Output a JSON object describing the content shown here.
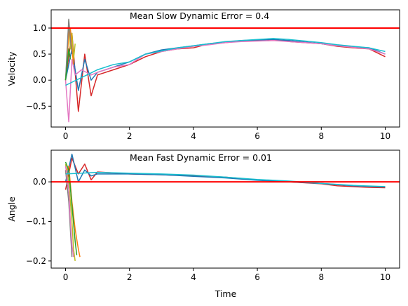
{
  "chart_data": [
    {
      "type": "line",
      "title": "",
      "annotation": "Mean Slow Dynamic Error = 0.4",
      "xlabel": "",
      "ylabel": "Velocity",
      "xlim": [
        -0.45,
        10.45
      ],
      "ylim": [
        -0.9,
        1.35
      ],
      "xticks": [
        0,
        2,
        4,
        6,
        8,
        10
      ],
      "xtick_labels": [
        "0",
        "2",
        "4",
        "6",
        "8",
        "10"
      ],
      "yticks": [
        1.0,
        0.5,
        0.0,
        -0.5
      ],
      "ytick_labels": [
        "1.0",
        "0.5",
        "0.0",
        "−0.5"
      ],
      "reference_line": {
        "y": 1.0,
        "color": "#ff0000"
      },
      "grid": false,
      "series": [
        {
          "color": "#d62728",
          "x": [
            0,
            0.2,
            0.4,
            0.6,
            0.8,
            1,
            1.5,
            2,
            2.5,
            3,
            3.5,
            4,
            4.5,
            5,
            5.5,
            6,
            6.5,
            7,
            7.5,
            8,
            8.5,
            9,
            9.5,
            10
          ],
          "y": [
            0,
            0.9,
            -0.6,
            0.5,
            -0.3,
            0.1,
            0.2,
            0.3,
            0.45,
            0.55,
            0.6,
            0.62,
            0.7,
            0.72,
            0.75,
            0.76,
            0.78,
            0.74,
            0.72,
            0.7,
            0.65,
            0.62,
            0.6,
            0.45
          ]
        },
        {
          "color": "#1f77b4",
          "x": [
            0,
            0.2,
            0.4,
            0.6,
            0.8,
            1,
            1.5,
            2,
            2.5,
            3,
            3.5,
            4,
            4.5,
            5,
            5.5,
            6,
            6.5,
            7,
            7.5,
            8,
            8.5,
            9,
            9.5,
            10
          ],
          "y": [
            0,
            0.6,
            -0.2,
            0.4,
            0.0,
            0.15,
            0.25,
            0.35,
            0.5,
            0.58,
            0.62,
            0.66,
            0.7,
            0.73,
            0.76,
            0.77,
            0.78,
            0.76,
            0.73,
            0.7,
            0.66,
            0.64,
            0.62,
            0.5
          ]
        },
        {
          "color": "#e377c2",
          "x": [
            0,
            0.1,
            0.2,
            0.3,
            0.5,
            0.8,
            1,
            1.5,
            2,
            2.5,
            3,
            3.5,
            4,
            4.5,
            5,
            5.5,
            6,
            6.5,
            7,
            7.5,
            8,
            8.5,
            9,
            9.5,
            10
          ],
          "y": [
            0,
            -0.8,
            0.4,
            0.1,
            0.2,
            0.1,
            0.15,
            0.25,
            0.3,
            0.5,
            0.55,
            0.6,
            0.65,
            0.68,
            0.72,
            0.74,
            0.75,
            0.76,
            0.74,
            0.72,
            0.7,
            0.66,
            0.63,
            0.6,
            0.5
          ]
        },
        {
          "color": "#bcbd22",
          "x": [
            0,
            0.05,
            0.1,
            0.15,
            0.2,
            0.25,
            0.3
          ],
          "y": [
            0,
            0.5,
            1.15,
            0.6,
            0.9,
            0.4,
            0.7
          ]
        },
        {
          "color": "#ff7f0e",
          "x": [
            0,
            0.05,
            0.1,
            0.15,
            0.2,
            0.25
          ],
          "y": [
            0,
            0.4,
            0.9,
            1.0,
            0.6,
            0.3
          ]
        },
        {
          "color": "#7f7f7f",
          "x": [
            0,
            0.05,
            0.1,
            0.15,
            0.2
          ],
          "y": [
            0,
            0.6,
            1.17,
            0.8,
            0.5
          ]
        },
        {
          "color": "#2ca02c",
          "x": [
            0,
            0.05,
            0.1,
            0.15
          ],
          "y": [
            0,
            0.3,
            0.6,
            0.4
          ]
        },
        {
          "color": "#17becf",
          "x": [
            0,
            0.5,
            1,
            1.5,
            2,
            2.5,
            3,
            3.5,
            4,
            4.5,
            5,
            5.5,
            6,
            6.5,
            7,
            7.5,
            8,
            8.5,
            9,
            9.5,
            10
          ],
          "y": [
            -0.1,
            0.05,
            0.2,
            0.3,
            0.35,
            0.5,
            0.56,
            0.62,
            0.66,
            0.7,
            0.74,
            0.76,
            0.78,
            0.8,
            0.78,
            0.75,
            0.72,
            0.68,
            0.65,
            0.62,
            0.55
          ]
        }
      ]
    },
    {
      "type": "line",
      "title": "",
      "annotation": "Mean Fast Dynamic Error = 0.01",
      "xlabel": "Time",
      "ylabel": "Angle",
      "xlim": [
        -0.45,
        10.45
      ],
      "ylim": [
        -0.218,
        0.08
      ],
      "xticks": [
        0,
        2,
        4,
        6,
        8,
        10
      ],
      "xtick_labels": [
        "0",
        "2",
        "4",
        "6",
        "8",
        "10"
      ],
      "yticks": [
        0.0,
        -0.1,
        -0.2
      ],
      "ytick_labels": [
        "0.0",
        "−0.1",
        "−0.2"
      ],
      "reference_line": {
        "y": 0.0,
        "color": "#ff0000"
      },
      "grid": false,
      "series": [
        {
          "color": "#d62728",
          "x": [
            0,
            0.2,
            0.4,
            0.6,
            0.8,
            1,
            2,
            3,
            4,
            5,
            6,
            7,
            8,
            8.5,
            9,
            9.5,
            10
          ],
          "y": [
            -0.02,
            0.06,
            0.02,
            0.045,
            0.005,
            0.025,
            0.02,
            0.018,
            0.015,
            0.012,
            0.005,
            0.0,
            -0.005,
            -0.01,
            -0.012,
            -0.014,
            -0.015
          ]
        },
        {
          "color": "#1f77b4",
          "x": [
            0,
            0.2,
            0.4,
            0.6,
            0.8,
            1,
            2,
            3,
            4,
            5,
            6,
            7,
            8,
            9,
            10
          ],
          "y": [
            0.0,
            0.07,
            0.0,
            0.03,
            0.015,
            0.02,
            0.02,
            0.018,
            0.014,
            0.01,
            0.004,
            0.0,
            -0.004,
            -0.01,
            -0.013
          ]
        },
        {
          "color": "#ff7f0e",
          "x": [
            0,
            0.1,
            0.2,
            0.3,
            0.4,
            0.45
          ],
          "y": [
            0.02,
            0.04,
            -0.05,
            -0.12,
            -0.17,
            -0.19
          ]
        },
        {
          "color": "#2ca02c",
          "x": [
            0,
            0.1,
            0.2,
            0.3,
            0.35
          ],
          "y": [
            0.05,
            0.03,
            -0.06,
            -0.15,
            -0.185
          ]
        },
        {
          "color": "#bcbd22",
          "x": [
            0,
            0.1,
            0.2,
            0.25,
            0.3
          ],
          "y": [
            0.045,
            0.0,
            -0.1,
            -0.17,
            -0.2
          ]
        },
        {
          "color": "#7f7f7f",
          "x": [
            0,
            0.1,
            0.15,
            0.2
          ],
          "y": [
            0.03,
            -0.05,
            -0.12,
            -0.19
          ]
        },
        {
          "color": "#e377c2",
          "x": [
            0,
            0.1,
            0.15,
            0.2,
            0.25
          ],
          "y": [
            0.04,
            -0.02,
            -0.1,
            -0.16,
            -0.19
          ]
        },
        {
          "color": "#17becf",
          "x": [
            0,
            0.5,
            1,
            2,
            3,
            4,
            5,
            6,
            7,
            8,
            9,
            10
          ],
          "y": [
            0.02,
            0.022,
            0.024,
            0.022,
            0.02,
            0.017,
            0.012,
            0.006,
            0.002,
            -0.004,
            -0.009,
            -0.012
          ]
        }
      ]
    }
  ]
}
